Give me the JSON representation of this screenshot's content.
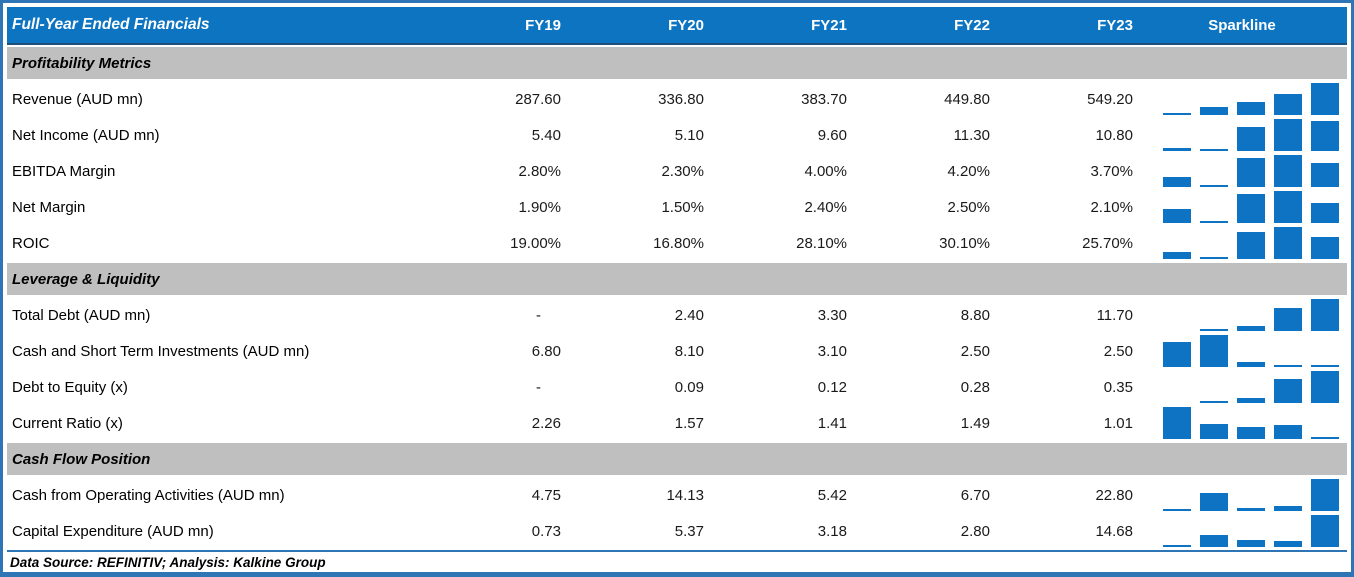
{
  "header": {
    "title": "Full-Year Ended Financials",
    "columns": [
      "FY19",
      "FY20",
      "FY21",
      "FY22",
      "FY23"
    ],
    "sparkline_label": "Sparkline"
  },
  "sections": [
    {
      "title": "Profitability Metrics",
      "rows": [
        {
          "label": "Revenue (AUD mn)",
          "display": [
            "287.60",
            "336.80",
            "383.70",
            "449.80",
            "549.20"
          ],
          "values": [
            287.6,
            336.8,
            383.7,
            449.8,
            549.2
          ]
        },
        {
          "label": "Net Income (AUD mn)",
          "display": [
            "5.40",
            "5.10",
            "9.60",
            "11.30",
            "10.80"
          ],
          "values": [
            5.4,
            5.1,
            9.6,
            11.3,
            10.8
          ]
        },
        {
          "label": "EBITDA Margin",
          "display": [
            "2.80%",
            "2.30%",
            "4.00%",
            "4.20%",
            "3.70%"
          ],
          "values": [
            2.8,
            2.3,
            4.0,
            4.2,
            3.7
          ]
        },
        {
          "label": "Net Margin",
          "display": [
            "1.90%",
            "1.50%",
            "2.40%",
            "2.50%",
            "2.10%"
          ],
          "values": [
            1.9,
            1.5,
            2.4,
            2.5,
            2.1
          ]
        },
        {
          "label": "ROIC",
          "display": [
            "19.00%",
            "16.80%",
            "28.10%",
            "30.10%",
            "25.70%"
          ],
          "values": [
            19.0,
            16.8,
            28.1,
            30.1,
            25.7
          ]
        }
      ]
    },
    {
      "title": "Leverage & Liquidity",
      "rows": [
        {
          "label": "Total Debt (AUD mn)",
          "display": [
            "-",
            "2.40",
            "3.30",
            "8.80",
            "11.70"
          ],
          "values": [
            null,
            2.4,
            3.3,
            8.8,
            11.7
          ]
        },
        {
          "label": "Cash and Short Term Investments (AUD mn)",
          "display": [
            "6.80",
            "8.10",
            "3.10",
            "2.50",
            "2.50"
          ],
          "values": [
            6.8,
            8.1,
            3.1,
            2.5,
            2.5
          ]
        },
        {
          "label": "Debt to Equity (x)",
          "display": [
            "-",
            "0.09",
            "0.12",
            "0.28",
            "0.35"
          ],
          "values": [
            null,
            0.09,
            0.12,
            0.28,
            0.35
          ]
        },
        {
          "label": "Current Ratio (x)",
          "display": [
            "2.26",
            "1.57",
            "1.41",
            "1.49",
            "1.01"
          ],
          "values": [
            2.26,
            1.57,
            1.41,
            1.49,
            1.01
          ]
        }
      ]
    },
    {
      "title": "Cash Flow Position",
      "rows": [
        {
          "label": "Cash from Operating Activities (AUD mn)",
          "display": [
            "4.75",
            "14.13",
            "5.42",
            "6.70",
            "22.80"
          ],
          "values": [
            4.75,
            14.13,
            5.42,
            6.7,
            22.8
          ]
        },
        {
          "label": "Capital Expenditure (AUD mn)",
          "display": [
            "0.73",
            "5.37",
            "3.18",
            "2.80",
            "14.68"
          ],
          "values": [
            0.73,
            5.37,
            3.18,
            2.8,
            14.68
          ]
        }
      ]
    }
  ],
  "footer": {
    "text": "Data Source: REFINITIV; Analysis: Kalkine Group"
  },
  "colors": {
    "header_bg": "#0d74c1",
    "header_border": "#1f4e79",
    "section_bg": "#bfbfbf",
    "bar": "#0e73c3",
    "frame_border": "#2e75b6"
  },
  "chart_data": {
    "type": "table",
    "title": "Full-Year Ended Financials",
    "columns": [
      "FY19",
      "FY20",
      "FY21",
      "FY22",
      "FY23"
    ],
    "rows": [
      {
        "section": "Profitability Metrics",
        "label": "Revenue (AUD mn)",
        "values": [
          287.6,
          336.8,
          383.7,
          449.8,
          549.2
        ]
      },
      {
        "section": "Profitability Metrics",
        "label": "Net Income (AUD mn)",
        "values": [
          5.4,
          5.1,
          9.6,
          11.3,
          10.8
        ]
      },
      {
        "section": "Profitability Metrics",
        "label": "EBITDA Margin (%)",
        "values": [
          2.8,
          2.3,
          4.0,
          4.2,
          3.7
        ]
      },
      {
        "section": "Profitability Metrics",
        "label": "Net Margin (%)",
        "values": [
          1.9,
          1.5,
          2.4,
          2.5,
          2.1
        ]
      },
      {
        "section": "Profitability Metrics",
        "label": "ROIC (%)",
        "values": [
          19.0,
          16.8,
          28.1,
          30.1,
          25.7
        ]
      },
      {
        "section": "Leverage & Liquidity",
        "label": "Total Debt (AUD mn)",
        "values": [
          null,
          2.4,
          3.3,
          8.8,
          11.7
        ]
      },
      {
        "section": "Leverage & Liquidity",
        "label": "Cash and Short Term Investments (AUD mn)",
        "values": [
          6.8,
          8.1,
          3.1,
          2.5,
          2.5
        ]
      },
      {
        "section": "Leverage & Liquidity",
        "label": "Debt to Equity (x)",
        "values": [
          null,
          0.09,
          0.12,
          0.28,
          0.35
        ]
      },
      {
        "section": "Leverage & Liquidity",
        "label": "Current Ratio (x)",
        "values": [
          2.26,
          1.57,
          1.41,
          1.49,
          1.01
        ]
      },
      {
        "section": "Cash Flow Position",
        "label": "Cash from Operating Activities (AUD mn)",
        "values": [
          4.75,
          14.13,
          5.42,
          6.7,
          22.8
        ]
      },
      {
        "section": "Cash Flow Position",
        "label": "Capital Expenditure (AUD mn)",
        "values": [
          0.73,
          5.37,
          3.18,
          2.8,
          14.68
        ]
      }
    ],
    "sparkline": {
      "type": "bar",
      "note": "per-row 5-column mini bar chart, heights scaled from row min to row max, blank slot for missing FY19 values",
      "position": "right column"
    }
  }
}
